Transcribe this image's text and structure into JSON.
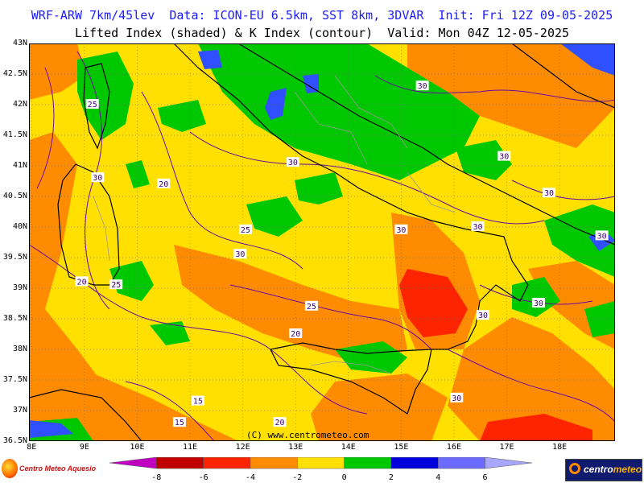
{
  "header": {
    "line1": "WRF-ARW 7km/45lev  Data: ICON-EU 6.5km, SST 8km, 3DVAR  Init: Fri 12Z 09-05-2025",
    "line2": "Lifted Index (shaded) & K Index (contour)  Valid: Mon 04Z 12-05-2025"
  },
  "map": {
    "lat_labels": [
      "43N",
      "42.5N",
      "42N",
      "41.5N",
      "41N",
      "40.5N",
      "40N",
      "39.5N",
      "39N",
      "38.5N",
      "38N",
      "37.5N",
      "37N",
      "36.5N"
    ],
    "lon_labels": [
      "8E",
      "9E",
      "10E",
      "11E",
      "12E",
      "13E",
      "14E",
      "15E",
      "16E",
      "17E",
      "18E"
    ],
    "contour_labels": [
      {
        "text": "25",
        "lon": 9.15,
        "lat": 42.0
      },
      {
        "text": "30",
        "lon": 9.25,
        "lat": 40.8
      },
      {
        "text": "20",
        "lon": 10.5,
        "lat": 40.7
      },
      {
        "text": "30",
        "lon": 12.95,
        "lat": 41.05
      },
      {
        "text": "25",
        "lon": 12.05,
        "lat": 39.95
      },
      {
        "text": "30",
        "lon": 11.95,
        "lat": 39.55
      },
      {
        "text": "20",
        "lon": 8.95,
        "lat": 39.1
      },
      {
        "text": "25",
        "lon": 9.6,
        "lat": 39.05
      },
      {
        "text": "25",
        "lon": 13.3,
        "lat": 38.7
      },
      {
        "text": "20",
        "lon": 13.0,
        "lat": 38.25
      },
      {
        "text": "30",
        "lon": 15.0,
        "lat": 39.95
      },
      {
        "text": "30",
        "lon": 15.4,
        "lat": 42.3
      },
      {
        "text": "30",
        "lon": 16.95,
        "lat": 41.15
      },
      {
        "text": "30",
        "lon": 17.8,
        "lat": 40.55
      },
      {
        "text": "30",
        "lon": 16.45,
        "lat": 40.0
      },
      {
        "text": "30",
        "lon": 18.8,
        "lat": 39.85
      },
      {
        "text": "30",
        "lon": 16.55,
        "lat": 38.55
      },
      {
        "text": "30",
        "lon": 17.6,
        "lat": 38.75
      },
      {
        "text": "30",
        "lon": 16.05,
        "lat": 37.2
      },
      {
        "text": "15",
        "lon": 11.15,
        "lat": 37.15
      },
      {
        "text": "15",
        "lon": 10.8,
        "lat": 36.8
      },
      {
        "text": "20",
        "lon": 12.7,
        "lat": 36.8
      }
    ],
    "watermark": "(C) www.centrometeo.com"
  },
  "colorbar": {
    "tick_labels": [
      "-8",
      "-6",
      "-4",
      "-2",
      "0",
      "2",
      "4",
      "6"
    ],
    "colors": [
      "#c000c0",
      "#c00000",
      "#ff2400",
      "#ff8c00",
      "#ffe000",
      "#00c800",
      "#0000dd",
      "#6b6bff",
      "#a7a7ff"
    ],
    "units": "Lifted Index"
  },
  "logos": {
    "left": "Centro Meteo Aquesio",
    "right_a": "centro",
    "right_b": "meteo"
  }
}
